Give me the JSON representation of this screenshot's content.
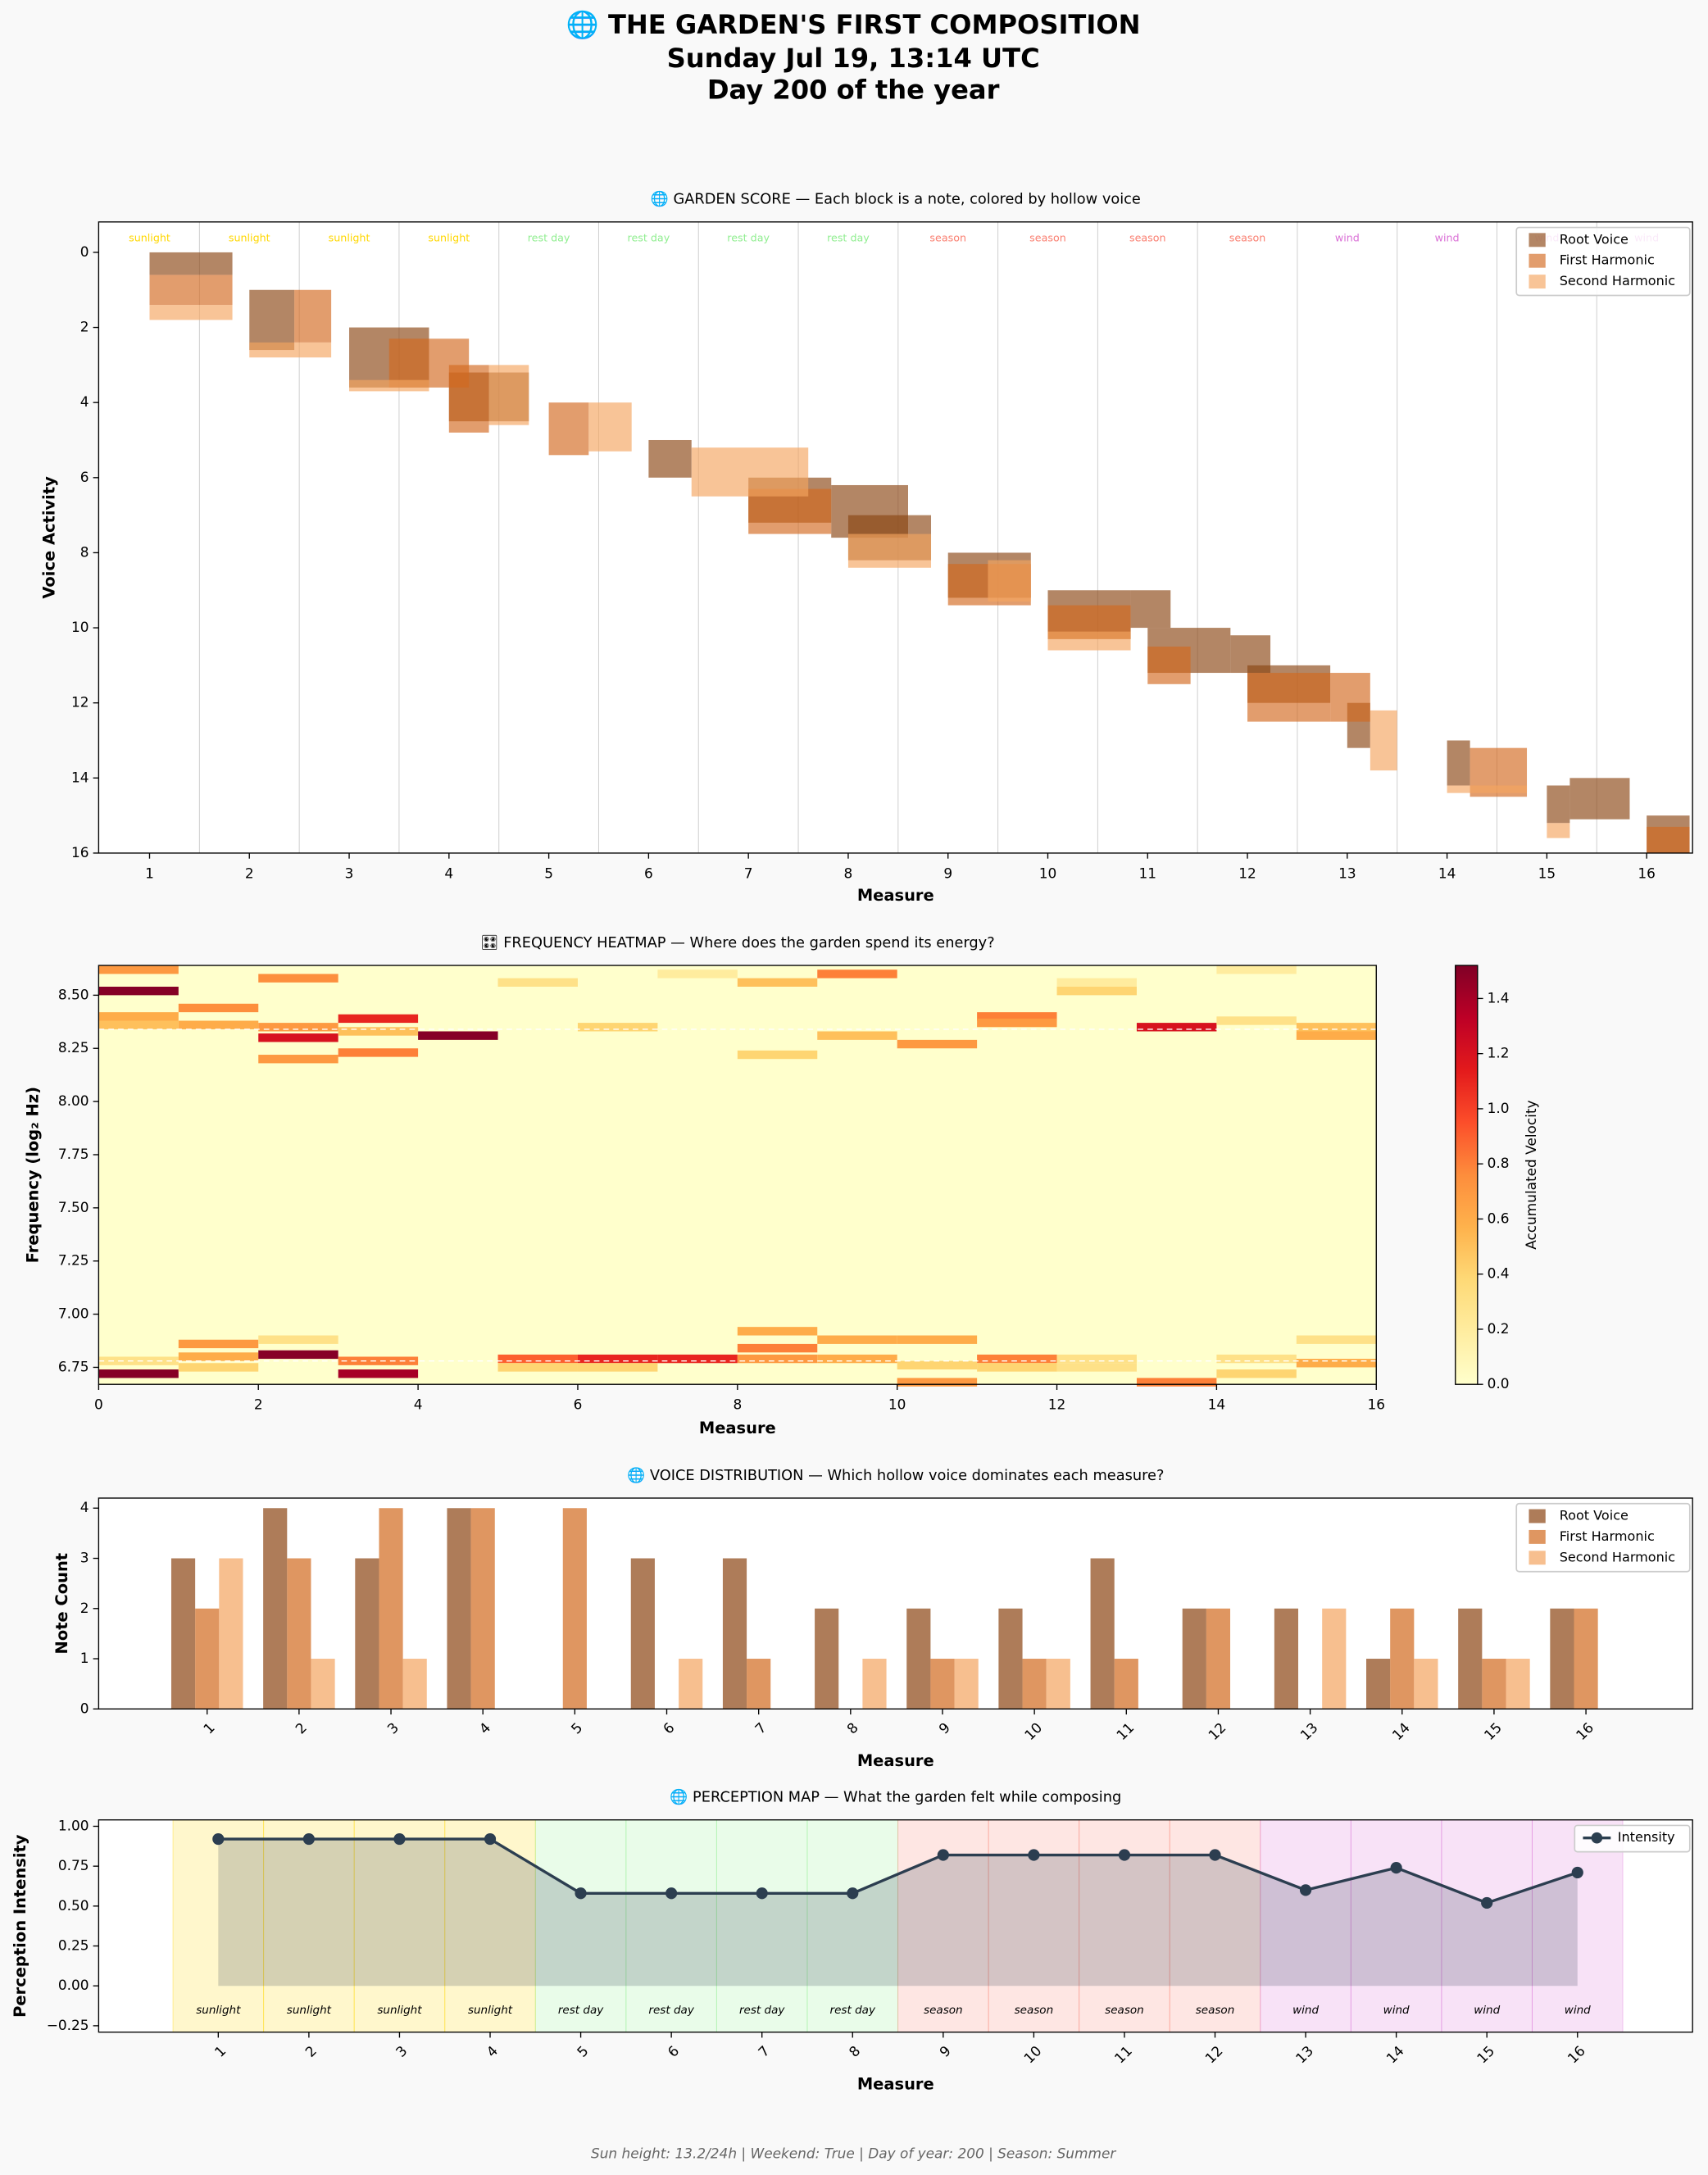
{
  "title_lines": [
    "🌐 THE GARDEN'S FIRST COMPOSITION",
    "Sunday Jul 19, 13:14 UTC",
    "Day 200 of the year"
  ],
  "footer": "Sun height: 13.2/24h | Weekend: True | Day of year: 200 | Season: Summer",
  "chart_data": [
    {
      "type": "piano_roll",
      "title": "🌐 GARDEN SCORE — Each block is a note, colored by hollow voice",
      "x_label": "Measure",
      "y_label": "Voice Activity",
      "xlim": [
        0.49,
        16.46
      ],
      "ylim": [
        16,
        -0.81
      ],
      "xticks": [
        1,
        2,
        3,
        4,
        5,
        6,
        7,
        8,
        9,
        10,
        11,
        12,
        13,
        14,
        15,
        16
      ],
      "yticks": [
        0,
        2,
        4,
        6,
        8,
        10,
        12,
        14,
        16
      ],
      "alpha": 0.65,
      "legend": "upper right",
      "annotations": [
        "sunlight",
        "sunlight",
        "sunlight",
        "sunlight",
        "rest day",
        "rest day",
        "rest day",
        "rest day",
        "season",
        "season",
        "season",
        "season",
        "wind",
        "wind",
        "wind",
        "wind"
      ],
      "annotation_colors": [
        "#ffd700",
        "#ffd700",
        "#ffd700",
        "#ffd700",
        "#90ee90",
        "#90ee90",
        "#90ee90",
        "#90ee90",
        "#fa8072",
        "#fa8072",
        "#fa8072",
        "#fa8072",
        "#da70d6",
        "#da70d6",
        "#da70d6",
        "#da70d6"
      ],
      "series": [
        {
          "name": "Root Voice",
          "color": "#8b4513",
          "values": [
            [
              1.0,
              1.83,
              0,
              0.6
            ],
            [
              2.0,
              2.45,
              1.0,
              2.6
            ],
            [
              3.0,
              3.8,
              2.0,
              3.6
            ],
            [
              4.0,
              4.8,
              3.2,
              4.5
            ],
            [
              6.0,
              6.43,
              5.0,
              6.0
            ],
            [
              7.0,
              7.83,
              6.0,
              7.2
            ],
            [
              7.83,
              8.6,
              6.2,
              7.6
            ],
            [
              8.0,
              8.83,
              7.0,
              8.2
            ],
            [
              9.0,
              9.83,
              8.0,
              9.2
            ],
            [
              10.0,
              10.83,
              9.0,
              10.3
            ],
            [
              10.83,
              11.23,
              9.0,
              10.0
            ],
            [
              11.0,
              11.83,
              10.0,
              11.2
            ],
            [
              11.83,
              12.23,
              10.2,
              11.2
            ],
            [
              12.0,
              12.83,
              11.0,
              12.0
            ],
            [
              13.0,
              13.23,
              12.0,
              13.2
            ],
            [
              14.0,
              14.23,
              13.0,
              14.2
            ],
            [
              15.0,
              15.23,
              14.2,
              15.2
            ],
            [
              15.23,
              15.83,
              14.0,
              15.1
            ],
            [
              16.0,
              16.43,
              15.0,
              16.0
            ]
          ]
        },
        {
          "name": "First Harmonic",
          "color": "#d2691e",
          "values": [
            [
              1.0,
              1.83,
              0.6,
              1.4
            ],
            [
              2.45,
              2.82,
              1.0,
              2.4
            ],
            [
              3.4,
              4.2,
              2.3,
              3.6
            ],
            [
              4.0,
              4.4,
              3.0,
              4.8
            ],
            [
              5.0,
              5.4,
              4.0,
              5.4
            ],
            [
              7.0,
              7.83,
              6.3,
              7.5
            ],
            [
              9.0,
              9.83,
              8.3,
              9.4
            ],
            [
              10.0,
              10.83,
              9.4,
              10.3
            ],
            [
              11.0,
              11.43,
              10.5,
              11.5
            ],
            [
              12.0,
              12.83,
              11.2,
              12.5
            ],
            [
              12.83,
              13.23,
              11.2,
              12.5
            ],
            [
              14.23,
              14.8,
              13.2,
              14.5
            ],
            [
              16.0,
              16.43,
              15.3,
              16.0
            ]
          ]
        },
        {
          "name": "Second Harmonic",
          "color": "#f4a460",
          "values": [
            [
              1.0,
              1.83,
              1.4,
              1.8
            ],
            [
              2.0,
              2.82,
              2.4,
              2.8
            ],
            [
              3.0,
              3.8,
              3.4,
              3.7
            ],
            [
              4.4,
              4.8,
              3.0,
              4.6
            ],
            [
              5.4,
              5.83,
              4.0,
              5.3
            ],
            [
              6.43,
              7.6,
              5.2,
              6.5
            ],
            [
              8.0,
              8.83,
              7.5,
              8.4
            ],
            [
              9.4,
              9.83,
              8.2,
              9.3
            ],
            [
              10.0,
              10.83,
              10.1,
              10.6
            ],
            [
              13.23,
              13.5,
              12.2,
              13.8
            ],
            [
              14.0,
              14.8,
              14.2,
              14.4
            ],
            [
              15.0,
              15.23,
              15.2,
              15.6
            ]
          ]
        }
      ]
    },
    {
      "type": "heatmap",
      "title": "🎛 FREQUENCY HEATMAP — Where does the garden spend its energy?",
      "x_label": "Measure",
      "y_label": "Frequency (log₂ Hz)",
      "colorbar_label": "Accumulated Velocity",
      "xlim": [
        0,
        16
      ],
      "ylim": [
        6.67,
        8.64
      ],
      "xticks": [
        0,
        2,
        4,
        6,
        8,
        10,
        12,
        14,
        16
      ],
      "yticks": [
        {
          "value": 6.75,
          "label": "6.75"
        },
        {
          "value": 7,
          "label": "7.00"
        },
        {
          "value": 7.25,
          "label": "7.25"
        },
        {
          "value": 7.5,
          "label": "7.50"
        },
        {
          "value": 7.75,
          "label": "7.75"
        },
        {
          "value": 8,
          "label": "8.00"
        },
        {
          "value": 8.25,
          "label": "8.25"
        },
        {
          "value": 8.5,
          "label": "8.50"
        }
      ],
      "colormap": "YlOrRd",
      "vlim": [
        0,
        1.52
      ],
      "cticks": [
        {
          "value": 0,
          "label": "0.0"
        },
        {
          "value": 0.2,
          "label": "0.2"
        },
        {
          "value": 0.4,
          "label": "0.4"
        },
        {
          "value": 0.6,
          "label": "0.6"
        },
        {
          "value": 0.8,
          "label": "0.8"
        },
        {
          "value": 1,
          "label": "1.0"
        },
        {
          "value": 1.2,
          "label": "1.2"
        },
        {
          "value": 1.4,
          "label": "1.4"
        }
      ],
      "cell_size": [
        1,
        0.04
      ],
      "reference_lines": [
        8.34,
        6.78
      ],
      "cells": [
        [
          0,
          8.6,
          0.7
        ],
        [
          0,
          8.5,
          1.5
        ],
        [
          0,
          8.38,
          0.6
        ],
        [
          0,
          8.34,
          0.5
        ],
        [
          0,
          6.76,
          0.3
        ],
        [
          0,
          6.7,
          1.5
        ],
        [
          1,
          8.42,
          0.75
        ],
        [
          1,
          8.34,
          0.6
        ],
        [
          1,
          6.84,
          0.7
        ],
        [
          1,
          6.78,
          0.6
        ],
        [
          1,
          6.73,
          0.4
        ],
        [
          2,
          8.56,
          0.75
        ],
        [
          2,
          8.33,
          0.7
        ],
        [
          2,
          8.28,
          1.2
        ],
        [
          2,
          8.18,
          0.7
        ],
        [
          2,
          6.86,
          0.3
        ],
        [
          2,
          6.79,
          1.5
        ],
        [
          3,
          8.37,
          1.1
        ],
        [
          3,
          8.31,
          0.5
        ],
        [
          3,
          8.21,
          0.8
        ],
        [
          3,
          6.76,
          0.8
        ],
        [
          3,
          6.7,
          1.4
        ],
        [
          4,
          8.29,
          1.5
        ],
        [
          5,
          8.54,
          0.3
        ],
        [
          5,
          6.77,
          0.9
        ],
        [
          5,
          6.73,
          0.4
        ],
        [
          6,
          8.33,
          0.4
        ],
        [
          6,
          6.77,
          1.1
        ],
        [
          6,
          6.73,
          0.4
        ],
        [
          7,
          8.58,
          0.2
        ],
        [
          7,
          6.77,
          1.1
        ],
        [
          8,
          8.54,
          0.5
        ],
        [
          8,
          8.2,
          0.4
        ],
        [
          8,
          6.9,
          0.6
        ],
        [
          8,
          6.82,
          0.8
        ],
        [
          8,
          6.77,
          0.7
        ],
        [
          9,
          8.58,
          0.8
        ],
        [
          9,
          8.29,
          0.5
        ],
        [
          9,
          6.86,
          0.6
        ],
        [
          9,
          6.77,
          0.6
        ],
        [
          10,
          8.25,
          0.7
        ],
        [
          10,
          6.86,
          0.6
        ],
        [
          10,
          6.74,
          0.4
        ],
        [
          10,
          6.66,
          0.7
        ],
        [
          11,
          8.38,
          0.8
        ],
        [
          11,
          8.35,
          0.7
        ],
        [
          11,
          6.77,
          0.8
        ],
        [
          11,
          6.73,
          0.4
        ],
        [
          12,
          8.5,
          0.4
        ],
        [
          12,
          8.54,
          0.2
        ],
        [
          12,
          6.77,
          0.3
        ],
        [
          12,
          6.73,
          0.3
        ],
        [
          13,
          8.33,
          1.2
        ],
        [
          13,
          6.66,
          0.8
        ],
        [
          14,
          8.6,
          0.2
        ],
        [
          14,
          8.36,
          0.3
        ],
        [
          14,
          6.77,
          0.3
        ],
        [
          14,
          6.7,
          0.4
        ],
        [
          15,
          8.33,
          0.5
        ],
        [
          15,
          8.29,
          0.6
        ],
        [
          15,
          6.86,
          0.3
        ],
        [
          15,
          6.75,
          0.6
        ]
      ]
    },
    {
      "type": "bar",
      "title": "🌐 VOICE DISTRIBUTION — Which hollow voice dominates each measure?",
      "x_label": "Measure",
      "y_label": "Note Count",
      "categories": [
        "1",
        "2",
        "3",
        "4",
        "5",
        "6",
        "7",
        "8",
        "9",
        "10",
        "11",
        "12",
        "13",
        "14",
        "15",
        "16"
      ],
      "ylim": [
        0,
        4.2
      ],
      "yticks": [
        0,
        1,
        2,
        3,
        4
      ],
      "alpha": 0.7,
      "legend": "upper right",
      "series": [
        {
          "name": "Root Voice",
          "color": "#8b4513",
          "values": [
            3,
            4,
            3,
            4,
            0,
            3,
            3,
            2,
            2,
            2,
            3,
            2,
            2,
            1,
            2,
            2
          ]
        },
        {
          "name": "First Harmonic",
          "color": "#d2691e",
          "values": [
            2,
            3,
            4,
            4,
            4,
            0,
            1,
            0,
            1,
            1,
            1,
            2,
            0,
            2,
            1,
            2
          ]
        },
        {
          "name": "Second Harmonic",
          "color": "#f4a460",
          "values": [
            3,
            1,
            1,
            0,
            0,
            1,
            0,
            1,
            1,
            1,
            0,
            0,
            2,
            1,
            1,
            0
          ]
        }
      ]
    },
    {
      "type": "line",
      "title": "🌐 PERCEPTION MAP — What the garden felt while composing",
      "x_label": "Measure",
      "y_label": "Perception Intensity",
      "xlim": [
        -0.32,
        17.27
      ],
      "ylim": [
        -0.29,
        1.04
      ],
      "x": [
        1,
        2,
        3,
        4,
        5,
        6,
        7,
        8,
        9,
        10,
        11,
        12,
        13,
        14,
        15,
        16
      ],
      "yticks": [
        {
          "value": -0.25,
          "label": "−0.25"
        },
        {
          "value": 0,
          "label": "0.00"
        },
        {
          "value": 0.25,
          "label": "0.25"
        },
        {
          "value": 0.5,
          "label": "0.50"
        },
        {
          "value": 0.75,
          "label": "0.75"
        },
        {
          "value": 1,
          "label": "1.00"
        }
      ],
      "span_labels": [
        "sunlight",
        "sunlight",
        "sunlight",
        "sunlight",
        "rest day",
        "rest day",
        "rest day",
        "rest day",
        "season",
        "season",
        "season",
        "season",
        "wind",
        "wind",
        "wind",
        "wind"
      ],
      "span_colors": [
        "#ffd700",
        "#ffd700",
        "#ffd700",
        "#ffd700",
        "#90ee90",
        "#90ee90",
        "#90ee90",
        "#90ee90",
        "#fa8072",
        "#fa8072",
        "#fa8072",
        "#fa8072",
        "#da70d6",
        "#da70d6",
        "#da70d6",
        "#da70d6"
      ],
      "legend": "upper right",
      "series": [
        {
          "name": "Intensity",
          "color": "#2c3e50",
          "values": [
            0.92,
            0.92,
            0.92,
            0.92,
            0.58,
            0.58,
            0.58,
            0.58,
            0.82,
            0.82,
            0.82,
            0.82,
            0.6,
            0.74,
            0.52,
            0.71
          ]
        }
      ]
    }
  ]
}
